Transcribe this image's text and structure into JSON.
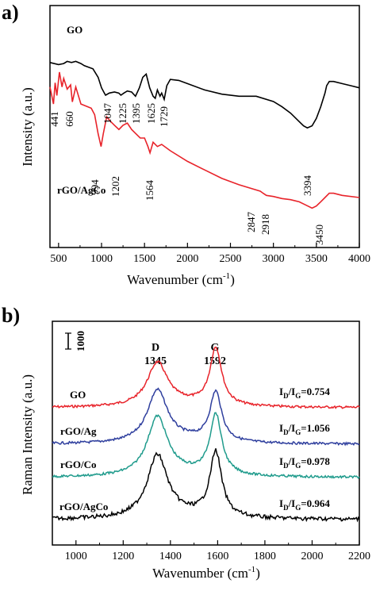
{
  "chart_data": [
    {
      "panel": "a)",
      "type": "line",
      "xlabel": "Wavenumber (cm",
      "xlabel_sup": "-1",
      "xlabel_end": ")",
      "ylabel": "Intensity (a.u.)",
      "xlim": [
        400,
        4000
      ],
      "xticks": [
        500,
        1000,
        1500,
        2000,
        2500,
        3000,
        3500,
        4000
      ],
      "grid": false,
      "series": [
        {
          "name": "GO",
          "color": "#000000",
          "x": [
            400,
            500,
            560,
            600,
            650,
            700,
            760,
            800,
            900,
            960,
            1000,
            1040,
            1047,
            1090,
            1150,
            1200,
            1225,
            1260,
            1300,
            1350,
            1395,
            1440,
            1480,
            1520,
            1560,
            1600,
            1625,
            1650,
            1680,
            1700,
            1729,
            1760,
            1800,
            1900,
            2000,
            2200,
            2400,
            2600,
            2800,
            3000,
            3100,
            3200,
            3300,
            3350,
            3394,
            3450,
            3500,
            3550,
            3600,
            3620,
            3650,
            3700,
            3800,
            3900,
            4000
          ],
          "y": [
            84,
            82,
            83,
            85,
            84,
            85,
            83,
            81,
            78,
            70,
            60,
            54,
            53,
            55,
            56,
            55,
            53,
            55,
            57,
            56,
            52,
            60,
            70,
            73,
            60,
            52,
            50,
            58,
            52,
            55,
            49,
            62,
            68,
            67,
            64,
            58,
            54,
            52,
            52,
            47,
            42,
            36,
            28,
            24,
            22,
            24,
            31,
            42,
            55,
            62,
            66,
            66,
            64,
            62,
            60
          ]
        },
        {
          "name": "rGO/AgCo",
          "color": "#e8232a",
          "x": [
            400,
            441,
            460,
            480,
            510,
            540,
            560,
            600,
            640,
            660,
            700,
            760,
            820,
            880,
            920,
            960,
            994,
            1020,
            1060,
            1100,
            1150,
            1202,
            1250,
            1300,
            1350,
            1400,
            1450,
            1500,
            1540,
            1564,
            1600,
            1650,
            1700,
            1800,
            2000,
            2200,
            2400,
            2600,
            2847,
            2880,
            2918,
            3000,
            3100,
            3200,
            3300,
            3400,
            3450,
            3500,
            3550,
            3600,
            3650,
            3700,
            3800,
            4000
          ],
          "y": [
            52,
            44,
            54,
            48,
            59,
            52,
            56,
            51,
            53,
            45,
            52,
            44,
            43,
            42,
            39,
            30,
            24,
            30,
            38,
            36,
            34,
            32,
            34,
            35,
            32,
            30,
            28,
            28,
            24,
            21,
            26,
            24,
            25,
            22,
            17,
            13,
            9,
            6,
            3,
            2,
            1,
            0.5,
            -0.5,
            -1,
            -2,
            -4,
            -5,
            -4,
            -2,
            0,
            2,
            2,
            1,
            0
          ]
        }
      ],
      "series_labels": [
        "GO",
        "rGO/AgCo"
      ],
      "annotations": [
        "441",
        "660",
        "1047",
        "1225",
        "1395",
        "1625",
        "1729",
        "994",
        "1202",
        "1564",
        "3394",
        "2847",
        "2918",
        "3450"
      ]
    },
    {
      "panel": "b)",
      "type": "line",
      "xlabel": "Wavenumber (cm",
      "xlabel_sup": "-1",
      "xlabel_end": ")",
      "ylabel": "Raman Intensity (a.u.)",
      "xlim": [
        900,
        2200
      ],
      "xticks": [
        1000,
        1200,
        1400,
        1600,
        1800,
        2000,
        2200
      ],
      "grid": false,
      "scale_bar": "1000",
      "peak_d": "D",
      "peak_d_pos": "1345",
      "peak_g": "G",
      "peak_g_pos": "1592",
      "ratio_text": "=0.754",
      "series": [
        {
          "name": "GO",
          "color": "#e8232a",
          "d_height": 0.95,
          "g_height": 1.26,
          "ratio": "I_D/I_G=0.754",
          "ratio_value": "=0.754"
        },
        {
          "name": "rGO/Ag",
          "color": "#2f3f9e",
          "d_height": 1.15,
          "g_height": 1.09,
          "ratio": "I_D/I_G=1.056",
          "ratio_value": "=1.056"
        },
        {
          "name": "rGO/Co",
          "color": "#1f9b8c",
          "d_height": 1.3,
          "g_height": 1.33,
          "ratio": "I_D/I_G=0.978",
          "ratio_value": "=0.978"
        },
        {
          "name": "rGO/AgCo",
          "color": "#000000",
          "d_height": 1.38,
          "g_height": 1.43,
          "ratio": "I_D/I_G=0.964",
          "ratio_value": "=0.964"
        }
      ]
    }
  ]
}
